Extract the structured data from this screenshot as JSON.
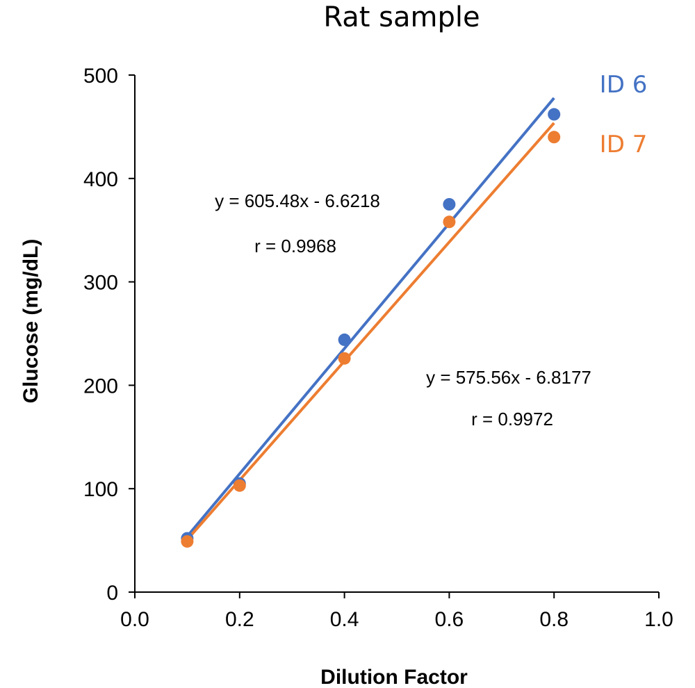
{
  "chart_data": {
    "type": "scatter",
    "title": "Rat sample",
    "xlabel": "Dilution Factor",
    "ylabel": "Glucose (mg/dL)",
    "xlim": [
      0,
      1
    ],
    "ylim": [
      0,
      500
    ],
    "x_ticks": [
      "0.0",
      "0.2",
      "0.4",
      "0.6",
      "0.8",
      "1.0"
    ],
    "y_ticks": [
      "0",
      "100",
      "200",
      "300",
      "400",
      "500"
    ],
    "grid": false,
    "legend_placement": "top-right",
    "series": [
      {
        "name": "ID 6",
        "color": "#4472C4",
        "x": [
          0.1,
          0.2,
          0.4,
          0.6,
          0.8
        ],
        "y": [
          52,
          105,
          244,
          375,
          462
        ],
        "trendline": {
          "slope": 605.48,
          "intercept": -6.6218
        },
        "equation": "y = 605.48x - 6.6218",
        "r": "r = 0.9968"
      },
      {
        "name": "ID 7",
        "color": "#ED7D31",
        "x": [
          0.1,
          0.2,
          0.4,
          0.6,
          0.8
        ],
        "y": [
          49,
          103,
          226,
          358,
          440
        ],
        "trendline": {
          "slope": 575.56,
          "intercept": -6.8177
        },
        "equation": "y = 575.56x - 6.8177",
        "r": "r = 0.9972"
      }
    ]
  }
}
